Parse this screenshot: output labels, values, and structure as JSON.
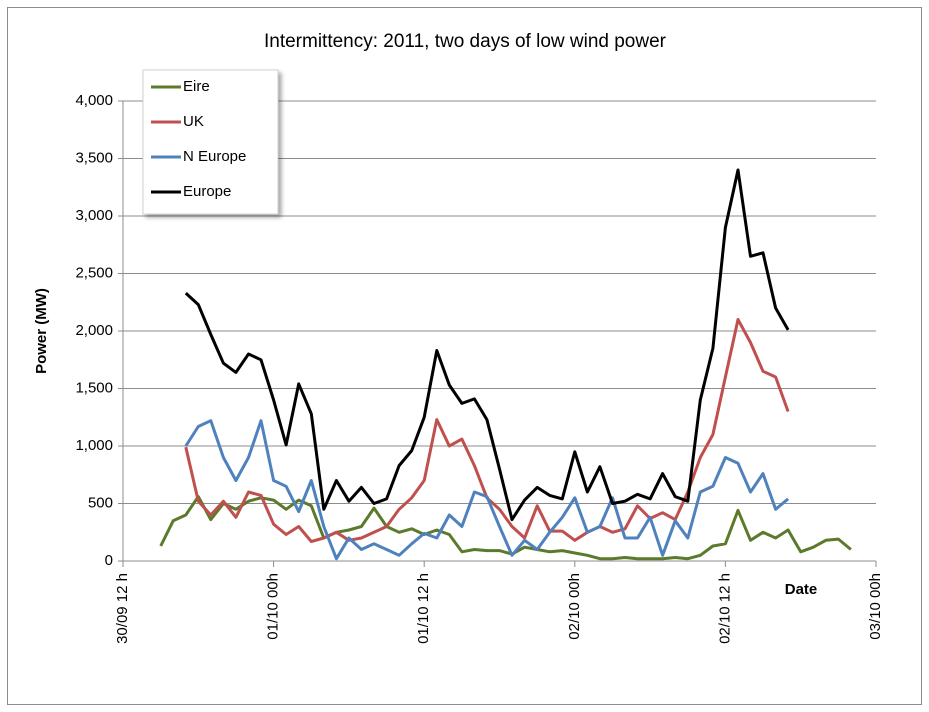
{
  "chart_data": {
    "type": "line",
    "title": "Intermittency: 2011, two days of low wind power",
    "x_label": "Date",
    "y_label": "Power (MW)",
    "x": [
      3,
      4,
      5,
      6,
      7,
      8,
      9,
      10,
      11,
      12,
      13,
      14,
      15,
      16,
      17,
      18,
      19,
      20,
      21,
      22,
      23,
      24,
      25,
      26,
      27,
      28,
      29,
      30,
      31,
      32,
      33,
      34,
      35,
      36,
      37,
      38,
      39,
      40,
      41,
      42,
      43,
      44,
      45,
      46,
      47,
      48,
      49,
      50,
      51,
      52,
      53,
      54,
      55,
      56,
      57,
      58
    ],
    "xlim": [
      0,
      60
    ],
    "xticks": [
      {
        "value": 0,
        "label": "30/09 12 h"
      },
      {
        "value": 12,
        "label": "01/10 00h"
      },
      {
        "value": 24,
        "label": "01/10 12 h"
      },
      {
        "value": 36,
        "label": "02/10 00h"
      },
      {
        "value": 48,
        "label": "02/10 12 h"
      },
      {
        "value": 60,
        "label": "03/10 00h"
      }
    ],
    "ylim": [
      0,
      4000
    ],
    "yticks": [
      0,
      500,
      {
        "value": 1000,
        "label": "1,000"
      },
      {
        "value": 1500,
        "label": "1,500"
      },
      {
        "value": 2000,
        "label": "2,000"
      },
      {
        "value": 2500,
        "label": "2,500"
      },
      {
        "value": 3000,
        "label": "3,000"
      },
      {
        "value": 3500,
        "label": "3,500"
      },
      {
        "value": 4000,
        "label": "4,000"
      }
    ],
    "grid": true,
    "legend": "upper left",
    "series": [
      {
        "name": "Eire",
        "color": "#5b7a2b",
        "values": [
          130,
          350,
          400,
          560,
          360,
          500,
          450,
          520,
          550,
          530,
          450,
          530,
          480,
          200,
          250,
          270,
          300,
          460,
          300,
          250,
          280,
          230,
          270,
          230,
          80,
          100,
          90,
          90,
          60,
          120,
          100,
          80,
          90,
          70,
          50,
          20,
          20,
          30,
          20,
          20,
          20,
          30,
          20,
          50,
          130,
          150,
          440,
          180,
          250,
          200,
          270,
          80,
          120,
          180,
          190,
          100
        ]
      },
      {
        "name": "UK",
        "color": "#c0504d",
        "values": [
          null,
          null,
          990,
          520,
          400,
          520,
          380,
          600,
          570,
          320,
          230,
          300,
          170,
          200,
          250,
          180,
          200,
          250,
          300,
          450,
          550,
          700,
          1230,
          1000,
          1060,
          830,
          550,
          450,
          300,
          200,
          480,
          260,
          260,
          180,
          250,
          300,
          250,
          280,
          480,
          370,
          420,
          360,
          600,
          900,
          1100,
          1600,
          2100,
          1900,
          1650,
          1600,
          1300,
          null,
          null,
          null,
          null,
          null
        ]
      },
      {
        "name": "N Europe",
        "color": "#4f81bd",
        "values": [
          null,
          null,
          1000,
          1170,
          1220,
          900,
          700,
          900,
          1220,
          700,
          650,
          430,
          700,
          300,
          20,
          200,
          100,
          150,
          100,
          50,
          150,
          240,
          200,
          400,
          300,
          600,
          560,
          300,
          50,
          180,
          100,
          250,
          380,
          550,
          250,
          300,
          550,
          200,
          200,
          380,
          50,
          350,
          200,
          600,
          650,
          900,
          850,
          600,
          760,
          450,
          540,
          null,
          null,
          null,
          null,
          null
        ]
      },
      {
        "name": "Europe",
        "color": "#000000",
        "values": [
          null,
          null,
          2330,
          2230,
          1970,
          1720,
          1640,
          1800,
          1750,
          1400,
          1010,
          1540,
          1280,
          450,
          700,
          520,
          640,
          500,
          540,
          830,
          960,
          1250,
          1830,
          1530,
          1370,
          1410,
          1230,
          800,
          360,
          530,
          640,
          570,
          540,
          950,
          600,
          820,
          500,
          520,
          580,
          540,
          760,
          560,
          520,
          1400,
          1850,
          2900,
          3400,
          2650,
          2680,
          2200,
          2010,
          null,
          null,
          null,
          null,
          null
        ]
      }
    ]
  }
}
